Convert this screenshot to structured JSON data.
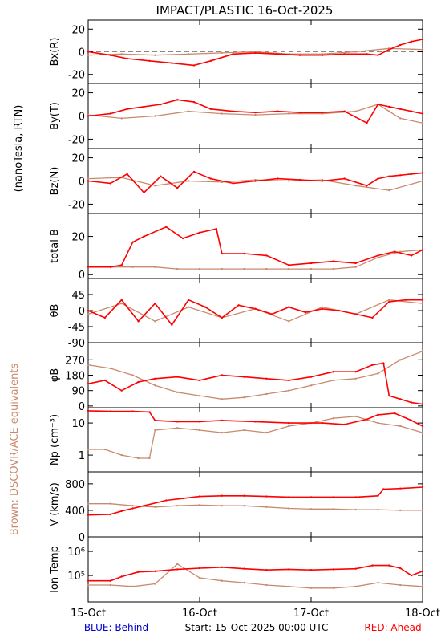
{
  "title": "IMPACT/PLASTIC   16-Oct-2025",
  "side_labels": {
    "units": "(nanoTesla, RTN)",
    "brown_note": "Brown: DSCOVR/ACE equivalents"
  },
  "footer": {
    "left": "BLUE: Behind",
    "center": "Start: 15-Oct-2025 00:00 UTC",
    "right": "RED: Ahead"
  },
  "colors": {
    "ahead": "#ff0000",
    "reference": "#c88a6e",
    "behind": "#0000cc",
    "axis": "#000000",
    "zero_line": "#888888"
  },
  "chart_data": {
    "type": "line",
    "x_axis": {
      "ticks": [
        "15-Oct",
        "16-Oct",
        "17-Oct",
        "18-Oct"
      ],
      "range_days": [
        0,
        3
      ]
    },
    "panels": [
      {
        "id": "bx",
        "ylabel": "Bx(R)",
        "ylim": [
          -28,
          28
        ],
        "yticks": [
          -20,
          0,
          20
        ],
        "zero_line": true,
        "series": [
          {
            "name": "Ahead",
            "color": "ahead",
            "x": [
              0,
              0.2,
              0.35,
              0.55,
              0.75,
              0.95,
              1.1,
              1.3,
              1.5,
              1.7,
              1.9,
              2.1,
              2.3,
              2.5,
              2.6,
              2.7,
              2.8,
              2.9,
              3.0
            ],
            "y": [
              0,
              -3,
              -6,
              -8,
              -10,
              -12,
              -8,
              -2,
              -1,
              -2,
              -3,
              -3,
              -2,
              -2,
              -3,
              2,
              6,
              9,
              11
            ]
          },
          {
            "name": "DSCOVR/ACE",
            "color": "reference",
            "x": [
              0,
              0.3,
              0.6,
              0.9,
              1.2,
              1.5,
              1.8,
              2.1,
              2.4,
              2.7,
              3.0
            ],
            "y": [
              -3,
              -2,
              -3,
              -2,
              -1,
              0,
              -2,
              -2,
              0,
              3,
              2
            ]
          }
        ]
      },
      {
        "id": "by",
        "ylabel": "By(T)",
        "ylim": [
          -28,
          28
        ],
        "yticks": [
          -20,
          0,
          20
        ],
        "zero_line": true,
        "series": [
          {
            "name": "Ahead",
            "color": "ahead",
            "x": [
              0,
              0.2,
              0.35,
              0.5,
              0.65,
              0.8,
              0.95,
              1.1,
              1.3,
              1.5,
              1.7,
              1.9,
              2.1,
              2.3,
              2.5,
              2.6,
              2.7,
              2.8,
              2.9,
              3.0
            ],
            "y": [
              0,
              2,
              6,
              8,
              10,
              14,
              12,
              6,
              4,
              3,
              4,
              3,
              3,
              4,
              -6,
              10,
              8,
              6,
              4,
              2
            ]
          },
          {
            "name": "DSCOVR/ACE",
            "color": "reference",
            "x": [
              0,
              0.3,
              0.6,
              0.9,
              1.2,
              1.5,
              1.8,
              2.1,
              2.4,
              2.6,
              2.7,
              2.8,
              3.0
            ],
            "y": [
              1,
              -2,
              0,
              4,
              2,
              1,
              2,
              2,
              4,
              10,
              4,
              -2,
              -6
            ]
          }
        ]
      },
      {
        "id": "bz",
        "ylabel": "Bz(N)",
        "ylim": [
          -28,
          28
        ],
        "yticks": [
          -20,
          0,
          20
        ],
        "zero_line": true,
        "series": [
          {
            "name": "Ahead",
            "color": "ahead",
            "x": [
              0,
              0.2,
              0.35,
              0.5,
              0.65,
              0.8,
              0.95,
              1.1,
              1.3,
              1.5,
              1.7,
              1.9,
              2.1,
              2.3,
              2.5,
              2.6,
              2.7,
              2.8,
              2.9,
              3.0
            ],
            "y": [
              0,
              -2,
              6,
              -10,
              4,
              -6,
              8,
              2,
              -2,
              0,
              2,
              1,
              0,
              2,
              -4,
              2,
              4,
              5,
              6,
              7
            ]
          },
          {
            "name": "DSCOVR/ACE",
            "color": "reference",
            "x": [
              0,
              0.3,
              0.6,
              0.9,
              1.2,
              1.5,
              1.8,
              2.1,
              2.4,
              2.7,
              3.0
            ],
            "y": [
              2,
              3,
              -4,
              0,
              -1,
              1,
              0,
              1,
              -4,
              -8,
              0
            ]
          }
        ]
      },
      {
        "id": "btot",
        "ylabel": "total B",
        "ylim": [
          -2,
          32
        ],
        "yticks": [
          0,
          20
        ],
        "zero_line": false,
        "series": [
          {
            "name": "Ahead",
            "color": "ahead",
            "x": [
              0,
              0.2,
              0.3,
              0.4,
              0.5,
              0.7,
              0.85,
              1.0,
              1.15,
              1.2,
              1.4,
              1.6,
              1.8,
              2.0,
              2.2,
              2.4,
              2.6,
              2.75,
              2.9,
              3.0
            ],
            "y": [
              4,
              4,
              5,
              17,
              20,
              25,
              19,
              22,
              24,
              11,
              11,
              10,
              5,
              6,
              7,
              6,
              10,
              12,
              10,
              13
            ]
          },
          {
            "name": "DSCOVR/ACE",
            "color": "reference",
            "x": [
              0,
              0.2,
              0.4,
              0.6,
              0.8,
              1.0,
              1.2,
              1.4,
              1.6,
              1.8,
              2.0,
              2.2,
              2.4,
              2.6,
              2.8,
              3.0
            ],
            "y": [
              4,
              4,
              4,
              4,
              3,
              3,
              3,
              3,
              3,
              3,
              3,
              3,
              4,
              9,
              12,
              13
            ]
          }
        ]
      },
      {
        "id": "theta",
        "ylabel": "θB",
        "ylim": [
          -90,
          90
        ],
        "yticks": [
          -90,
          -45,
          0,
          45
        ],
        "zero_line": false,
        "series": [
          {
            "name": "Ahead",
            "color": "ahead",
            "x": [
              0,
              0.15,
              0.3,
              0.45,
              0.6,
              0.75,
              0.9,
              1.05,
              1.2,
              1.35,
              1.5,
              1.65,
              1.8,
              1.95,
              2.1,
              2.25,
              2.4,
              2.55,
              2.7,
              2.85,
              3.0
            ],
            "y": [
              0,
              -20,
              30,
              -30,
              20,
              -40,
              30,
              10,
              -20,
              15,
              5,
              -10,
              10,
              -5,
              5,
              0,
              -10,
              -20,
              25,
              30,
              30
            ]
          },
          {
            "name": "DSCOVR/ACE",
            "color": "reference",
            "x": [
              0,
              0.3,
              0.6,
              0.9,
              1.2,
              1.5,
              1.8,
              2.1,
              2.4,
              2.7,
              3.0
            ],
            "y": [
              -10,
              20,
              -30,
              10,
              -20,
              5,
              -30,
              10,
              -10,
              30,
              20
            ]
          }
        ]
      },
      {
        "id": "phi",
        "ylabel": "φB",
        "ylim": [
          -10,
          370
        ],
        "yticks": [
          0,
          90,
          180,
          270
        ],
        "zero_line": false,
        "series": [
          {
            "name": "Ahead",
            "color": "ahead",
            "x": [
              0,
              0.15,
              0.3,
              0.45,
              0.6,
              0.8,
              1.0,
              1.2,
              1.4,
              1.6,
              1.8,
              2.0,
              2.2,
              2.4,
              2.55,
              2.65,
              2.7,
              2.8,
              2.9,
              3.0
            ],
            "y": [
              130,
              150,
              90,
              140,
              160,
              170,
              150,
              180,
              170,
              160,
              150,
              170,
              200,
              200,
              240,
              250,
              60,
              40,
              20,
              10
            ]
          },
          {
            "name": "DSCOVR/ACE",
            "color": "reference",
            "x": [
              0,
              0.2,
              0.4,
              0.6,
              0.8,
              1.0,
              1.2,
              1.4,
              1.6,
              1.8,
              2.0,
              2.2,
              2.4,
              2.6,
              2.8,
              3.0
            ],
            "y": [
              240,
              220,
              180,
              120,
              80,
              60,
              40,
              50,
              70,
              90,
              120,
              150,
              160,
              190,
              270,
              320
            ]
          }
        ]
      },
      {
        "id": "np",
        "ylabel": "Np (cm⁻³)",
        "log": true,
        "ylim": [
          0.3,
          30
        ],
        "yticks": [
          1,
          10
        ],
        "zero_line": false,
        "series": [
          {
            "name": "Ahead",
            "color": "ahead",
            "x": [
              0,
              0.2,
              0.4,
              0.55,
              0.6,
              0.8,
              1.0,
              1.2,
              1.5,
              1.8,
              2.1,
              2.3,
              2.5,
              2.6,
              2.75,
              2.9,
              3.0
            ],
            "y": [
              24,
              23,
              23,
              22,
              12,
              11,
              11,
              12,
              11,
              10,
              10,
              9,
              13,
              18,
              20,
              12,
              8
            ]
          },
          {
            "name": "DSCOVR/ACE",
            "color": "reference",
            "x": [
              0,
              0.15,
              0.3,
              0.45,
              0.55,
              0.6,
              0.8,
              1.0,
              1.2,
              1.4,
              1.6,
              1.8,
              2.0,
              2.2,
              2.4,
              2.6,
              2.8,
              3.0
            ],
            "y": [
              1.5,
              1.5,
              1,
              0.8,
              0.8,
              6,
              7,
              6,
              5,
              6,
              5,
              8,
              10,
              14,
              16,
              10,
              8,
              5
            ]
          }
        ]
      },
      {
        "id": "v",
        "ylabel": "V (km/s)",
        "ylim": [
          0,
          980
        ],
        "yticks": [
          0,
          400,
          800
        ],
        "zero_line": false,
        "series": [
          {
            "name": "Ahead",
            "color": "ahead",
            "x": [
              0,
              0.2,
              0.3,
              0.4,
              0.5,
              0.7,
              0.85,
              1.0,
              1.2,
              1.4,
              1.6,
              1.8,
              2.0,
              2.2,
              2.4,
              2.6,
              2.65,
              2.8,
              3.0
            ],
            "y": [
              330,
              340,
              390,
              430,
              470,
              550,
              580,
              610,
              620,
              620,
              610,
              600,
              600,
              600,
              600,
              620,
              720,
              730,
              750
            ]
          },
          {
            "name": "DSCOVR/ACE",
            "color": "reference",
            "x": [
              0,
              0.2,
              0.4,
              0.6,
              0.8,
              1.0,
              1.2,
              1.4,
              1.6,
              1.8,
              2.0,
              2.2,
              2.4,
              2.6,
              2.8,
              3.0
            ],
            "y": [
              500,
              500,
              470,
              450,
              470,
              480,
              470,
              470,
              450,
              430,
              420,
              420,
              410,
              410,
              400,
              400
            ]
          }
        ]
      },
      {
        "id": "temp",
        "ylabel": "Ion Temp",
        "log": true,
        "ylim": [
          8000,
          4000000
        ],
        "yticks": [
          100000,
          1000000
        ],
        "yticklabels": [
          "10⁵",
          "10⁶"
        ],
        "zero_line": false,
        "series": [
          {
            "name": "Ahead",
            "color": "ahead",
            "x": [
              0,
              0.2,
              0.3,
              0.45,
              0.6,
              0.8,
              1.0,
              1.2,
              1.4,
              1.6,
              1.8,
              2.0,
              2.2,
              2.4,
              2.55,
              2.7,
              2.8,
              2.9,
              3.0
            ],
            "y": [
              60000,
              60000,
              90000,
              140000,
              150000,
              180000,
              200000,
              220000,
              190000,
              170000,
              180000,
              170000,
              180000,
              190000,
              260000,
              260000,
              200000,
              100000,
              150000
            ]
          },
          {
            "name": "DSCOVR/ACE",
            "color": "reference",
            "x": [
              0,
              0.2,
              0.4,
              0.6,
              0.8,
              1.0,
              1.2,
              1.4,
              1.6,
              1.8,
              2.0,
              2.2,
              2.4,
              2.6,
              2.8,
              3.0
            ],
            "y": [
              40000,
              40000,
              35000,
              45000,
              300000,
              80000,
              60000,
              50000,
              40000,
              35000,
              30000,
              30000,
              35000,
              50000,
              40000,
              35000
            ]
          }
        ]
      }
    ]
  }
}
